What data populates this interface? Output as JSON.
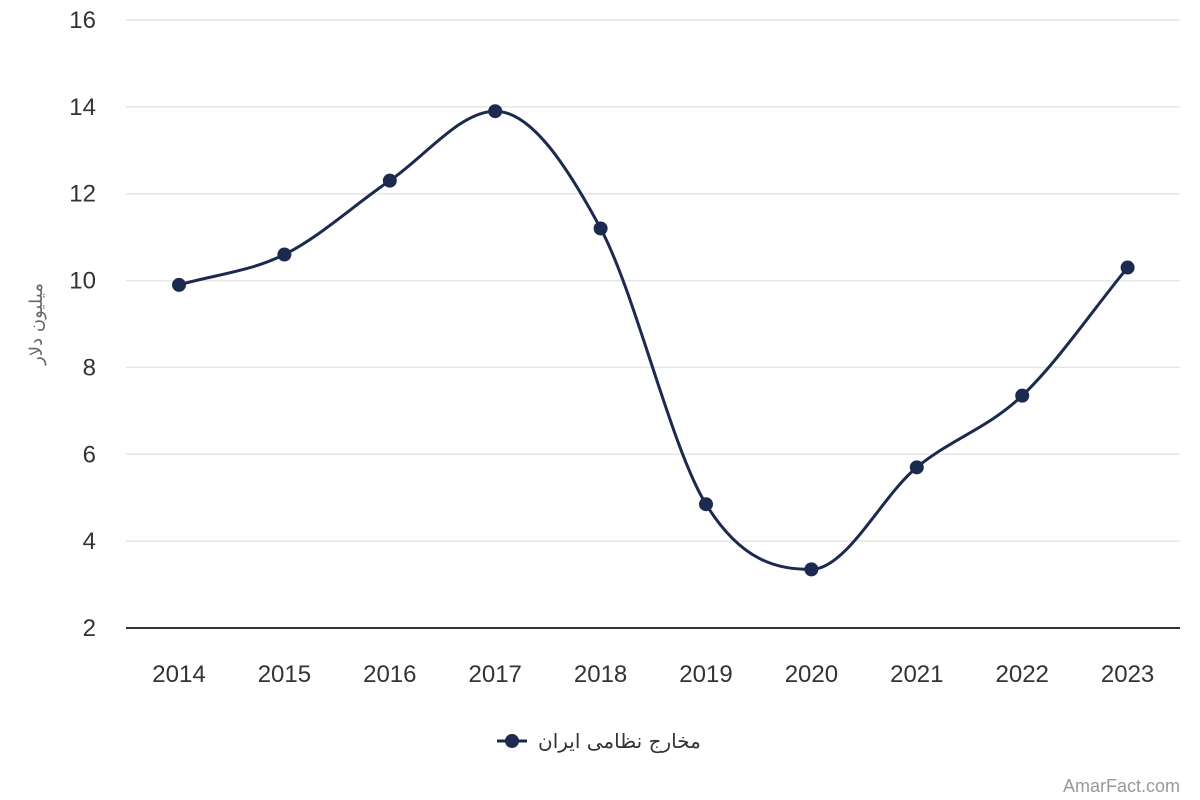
{
  "chart_data": {
    "type": "line",
    "title": "",
    "xlabel": "",
    "ylabel": "میلیون دلار",
    "categories": [
      "2014",
      "2015",
      "2016",
      "2017",
      "2018",
      "2019",
      "2020",
      "2021",
      "2022",
      "2023"
    ],
    "series": [
      {
        "name": "مخارج نظامی ایران",
        "values": [
          9.9,
          10.6,
          12.3,
          13.9,
          11.2,
          4.85,
          3.35,
          5.7,
          7.35,
          10.3
        ],
        "color": "#1b2a4e"
      }
    ],
    "ylim": [
      2,
      16
    ],
    "yticks": [
      2,
      4,
      6,
      8,
      10,
      12,
      14,
      16
    ],
    "grid": true,
    "smooth": true,
    "legend_position": "bottom-center"
  },
  "watermark": "AmarFact.com",
  "colors": {
    "grid": "#e6e6e6",
    "axis": "#333333",
    "series": "#1b2a4e"
  }
}
